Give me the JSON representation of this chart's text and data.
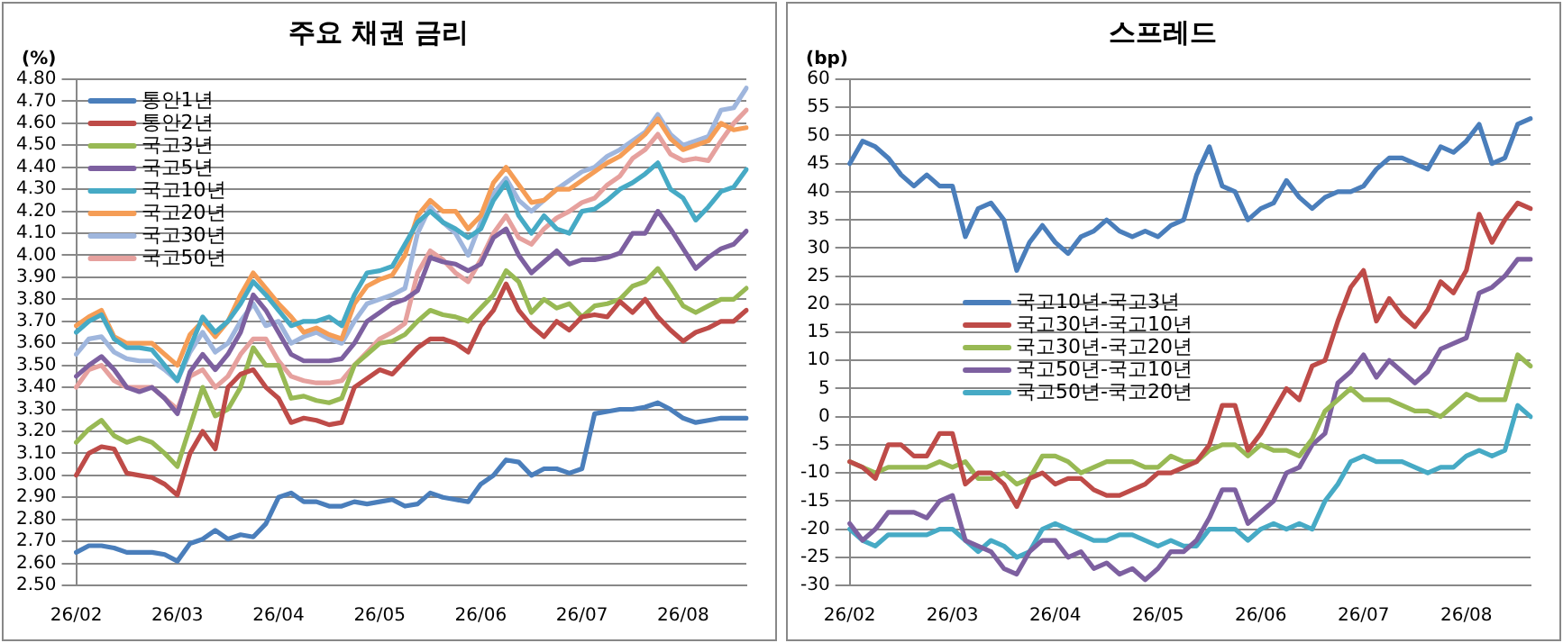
{
  "chart_data": [
    {
      "type": "line",
      "title": "주요 채권 금리",
      "ylabel": "(%)",
      "grid": "y",
      "legend": "top left",
      "marker": "none",
      "categories": [
        "26/02",
        null,
        null,
        null,
        null,
        null,
        null,
        null,
        "26/03",
        null,
        null,
        null,
        null,
        null,
        null,
        null,
        "26/04",
        null,
        null,
        null,
        null,
        null,
        null,
        null,
        "26/05",
        null,
        null,
        null,
        null,
        null,
        null,
        null,
        "26/06",
        null,
        null,
        null,
        null,
        null,
        null,
        null,
        "26/07",
        null,
        null,
        null,
        null,
        null,
        null,
        null,
        "26/08",
        null,
        null,
        null,
        null,
        null
      ],
      "ylim": [
        2.5,
        4.8
      ],
      "yticks": [
        {
          "value": 2.5,
          "label": "2.50"
        },
        {
          "value": 2.6,
          "label": "2.60"
        },
        {
          "value": 2.7,
          "label": "2.70"
        },
        {
          "value": 2.8,
          "label": "2.80"
        },
        {
          "value": 2.9,
          "label": "2.90"
        },
        {
          "value": 3.0,
          "label": "3.00"
        },
        {
          "value": 3.1,
          "label": "3.10"
        },
        {
          "value": 3.2,
          "label": "3.20"
        },
        {
          "value": 3.3,
          "label": "3.30"
        },
        {
          "value": 3.4,
          "label": "3.40"
        },
        {
          "value": 3.5,
          "label": "3.50"
        },
        {
          "value": 3.6,
          "label": "3.60"
        },
        {
          "value": 3.7,
          "label": "3.70"
        },
        {
          "value": 3.8,
          "label": "3.80"
        },
        {
          "value": 3.9,
          "label": "3.90"
        },
        {
          "value": 4.0,
          "label": "4.00"
        },
        {
          "value": 4.1,
          "label": "4.10"
        },
        {
          "value": 4.2,
          "label": "4.20"
        },
        {
          "value": 4.3,
          "label": "4.30"
        },
        {
          "value": 4.4,
          "label": "4.40"
        },
        {
          "value": 4.5,
          "label": "4.50"
        },
        {
          "value": 4.6,
          "label": "4.60"
        },
        {
          "value": 4.7,
          "label": "4.70"
        },
        {
          "value": 4.8,
          "label": "4.80"
        }
      ],
      "series": [
        {
          "name": "통안1년",
          "color": "#4a7ebb",
          "values": [
            2.65,
            2.68,
            2.68,
            2.67,
            2.65,
            2.65,
            2.65,
            2.64,
            2.61,
            2.69,
            2.71,
            2.75,
            2.71,
            2.73,
            2.72,
            2.78,
            2.9,
            2.92,
            2.88,
            2.88,
            2.86,
            2.86,
            2.88,
            2.87,
            2.88,
            2.89,
            2.86,
            2.87,
            2.92,
            2.9,
            2.89,
            2.88,
            2.96,
            3.0,
            3.07,
            3.06,
            3.0,
            3.03,
            3.03,
            3.01,
            3.03,
            3.28,
            3.29,
            3.3,
            3.3,
            3.31,
            3.33,
            3.3,
            3.26,
            3.24,
            3.25,
            3.26,
            3.26,
            3.26
          ]
        },
        {
          "name": "통안2년",
          "color": "#be4b48",
          "values": [
            3.0,
            3.1,
            3.13,
            3.12,
            3.01,
            3.0,
            2.99,
            2.96,
            2.91,
            3.1,
            3.2,
            3.12,
            3.4,
            3.46,
            3.48,
            3.4,
            3.35,
            3.24,
            3.26,
            3.25,
            3.23,
            3.24,
            3.4,
            3.44,
            3.48,
            3.46,
            3.52,
            3.58,
            3.62,
            3.62,
            3.6,
            3.56,
            3.68,
            3.75,
            3.87,
            3.75,
            3.68,
            3.63,
            3.7,
            3.66,
            3.72,
            3.73,
            3.72,
            3.79,
            3.74,
            3.8,
            3.72,
            3.66,
            3.61,
            3.65,
            3.67,
            3.7,
            3.7,
            3.75
          ]
        },
        {
          "name": "국고3년",
          "color": "#98b954",
          "values": [
            3.15,
            3.21,
            3.25,
            3.18,
            3.15,
            3.17,
            3.15,
            3.1,
            3.04,
            3.22,
            3.4,
            3.27,
            3.3,
            3.4,
            3.58,
            3.5,
            3.5,
            3.35,
            3.36,
            3.34,
            3.33,
            3.35,
            3.5,
            3.55,
            3.6,
            3.61,
            3.64,
            3.7,
            3.75,
            3.73,
            3.72,
            3.7,
            3.76,
            3.82,
            3.93,
            3.88,
            3.74,
            3.8,
            3.76,
            3.78,
            3.72,
            3.77,
            3.78,
            3.8,
            3.86,
            3.88,
            3.94,
            3.86,
            3.77,
            3.74,
            3.77,
            3.8,
            3.8,
            3.85
          ]
        },
        {
          "name": "국고5년",
          "color": "#7d60a0",
          "values": [
            3.45,
            3.5,
            3.54,
            3.48,
            3.4,
            3.38,
            3.4,
            3.35,
            3.28,
            3.47,
            3.55,
            3.48,
            3.55,
            3.65,
            3.82,
            3.75,
            3.65,
            3.55,
            3.52,
            3.52,
            3.52,
            3.53,
            3.6,
            3.7,
            3.74,
            3.78,
            3.8,
            3.84,
            3.99,
            3.97,
            3.96,
            3.93,
            3.96,
            4.08,
            4.12,
            4.0,
            3.92,
            3.97,
            4.02,
            3.96,
            3.98,
            3.98,
            3.99,
            4.01,
            4.1,
            4.1,
            4.2,
            4.12,
            4.03,
            3.94,
            3.99,
            4.03,
            4.05,
            4.11
          ]
        },
        {
          "name": "국고10년",
          "color": "#46aac5",
          "values": [
            3.65,
            3.7,
            3.73,
            3.62,
            3.58,
            3.58,
            3.57,
            3.5,
            3.43,
            3.58,
            3.72,
            3.65,
            3.7,
            3.78,
            3.88,
            3.82,
            3.75,
            3.68,
            3.7,
            3.7,
            3.72,
            3.68,
            3.82,
            3.92,
            3.93,
            3.95,
            4.05,
            4.15,
            4.2,
            4.15,
            4.12,
            4.08,
            4.12,
            4.25,
            4.33,
            4.18,
            4.1,
            4.18,
            4.12,
            4.1,
            4.2,
            4.21,
            4.25,
            4.3,
            4.33,
            4.37,
            4.42,
            4.3,
            4.26,
            4.16,
            4.22,
            4.29,
            4.31,
            4.39
          ]
        },
        {
          "name": "국고20년",
          "color": "#f59d56",
          "values": [
            3.68,
            3.72,
            3.75,
            3.63,
            3.6,
            3.6,
            3.6,
            3.55,
            3.5,
            3.64,
            3.7,
            3.63,
            3.7,
            3.82,
            3.92,
            3.85,
            3.78,
            3.72,
            3.65,
            3.67,
            3.64,
            3.62,
            3.78,
            3.86,
            3.89,
            3.91,
            4.0,
            4.18,
            4.25,
            4.2,
            4.2,
            4.12,
            4.18,
            4.33,
            4.4,
            4.32,
            4.24,
            4.25,
            4.3,
            4.3,
            4.34,
            4.38,
            4.42,
            4.45,
            4.5,
            4.55,
            4.62,
            4.53,
            4.48,
            4.5,
            4.52,
            4.6,
            4.57,
            4.58
          ]
        },
        {
          "name": "국고30년",
          "color": "#9fb6dd",
          "values": [
            3.55,
            3.62,
            3.63,
            3.56,
            3.53,
            3.52,
            3.52,
            3.48,
            3.43,
            3.56,
            3.65,
            3.56,
            3.6,
            3.7,
            3.78,
            3.68,
            3.7,
            3.6,
            3.63,
            3.65,
            3.62,
            3.6,
            3.7,
            3.78,
            3.8,
            3.82,
            3.85,
            4.1,
            4.22,
            4.15,
            4.1,
            4.0,
            4.15,
            4.28,
            4.35,
            4.25,
            4.2,
            4.25,
            4.3,
            4.34,
            4.38,
            4.4,
            4.45,
            4.48,
            4.52,
            4.56,
            4.64,
            4.55,
            4.5,
            4.52,
            4.54,
            4.66,
            4.67,
            4.76
          ]
        },
        {
          "name": "국고50년",
          "color": "#e6a19e",
          "values": [
            3.4,
            3.48,
            3.5,
            3.43,
            3.4,
            3.4,
            3.4,
            3.35,
            3.3,
            3.45,
            3.48,
            3.4,
            3.45,
            3.55,
            3.62,
            3.62,
            3.52,
            3.45,
            3.43,
            3.42,
            3.42,
            3.43,
            3.5,
            3.56,
            3.62,
            3.65,
            3.69,
            3.92,
            4.02,
            3.98,
            3.92,
            3.88,
            3.98,
            4.1,
            4.18,
            4.08,
            4.05,
            4.12,
            4.17,
            4.2,
            4.24,
            4.26,
            4.32,
            4.36,
            4.44,
            4.48,
            4.55,
            4.46,
            4.43,
            4.44,
            4.43,
            4.52,
            4.6,
            4.66
          ]
        }
      ]
    },
    {
      "type": "line",
      "title": "스프레드",
      "ylabel": "(bp)",
      "grid": "y",
      "legend": "center",
      "marker": "none",
      "categories": [
        "26/02",
        null,
        null,
        null,
        null,
        null,
        null,
        null,
        "26/03",
        null,
        null,
        null,
        null,
        null,
        null,
        null,
        "26/04",
        null,
        null,
        null,
        null,
        null,
        null,
        null,
        "26/05",
        null,
        null,
        null,
        null,
        null,
        null,
        null,
        "26/06",
        null,
        null,
        null,
        null,
        null,
        null,
        null,
        "26/07",
        null,
        null,
        null,
        null,
        null,
        null,
        null,
        "26/08",
        null,
        null,
        null,
        null,
        null
      ],
      "ylim": [
        -30,
        60
      ],
      "yticks": [
        -30,
        -25,
        -20,
        -15,
        -10,
        -5,
        0,
        5,
        10,
        15,
        20,
        25,
        30,
        35,
        40,
        45,
        50,
        55,
        60
      ],
      "series": [
        {
          "name": "국고10년-국고3년",
          "color": "#4a7ebb",
          "values": [
            45,
            49,
            48,
            46,
            43,
            41,
            43,
            41,
            41,
            32,
            37,
            38,
            35,
            26,
            31,
            34,
            31,
            29,
            32,
            33,
            35,
            33,
            32,
            33,
            32,
            34,
            35,
            43,
            48,
            41,
            40,
            35,
            37,
            38,
            42,
            39,
            37,
            39,
            40,
            40,
            41,
            44,
            46,
            46,
            45,
            44,
            48,
            47,
            49,
            52,
            45,
            46,
            52,
            53
          ]
        },
        {
          "name": "국고30년-국고10년",
          "color": "#be4b48",
          "values": [
            -8,
            -9,
            -11,
            -5,
            -5,
            -7,
            -7,
            -3,
            -3,
            -12,
            -10,
            -10,
            -12,
            -16,
            -11,
            -10,
            -12,
            -11,
            -11,
            -13,
            -14,
            -14,
            -13,
            -12,
            -10,
            -10,
            -9,
            -8,
            -5,
            2,
            2,
            -6,
            -3,
            1,
            5,
            3,
            9,
            10,
            17,
            23,
            26,
            17,
            21,
            18,
            16,
            19,
            24,
            22,
            26,
            36,
            31,
            35,
            38,
            37
          ]
        },
        {
          "name": "국고30년-국고20년",
          "color": "#98b954",
          "values": [
            -8,
            -9,
            -10,
            -9,
            -9,
            -9,
            -9,
            -8,
            -9,
            -8,
            -11,
            -11,
            -10,
            -12,
            -11,
            -7,
            -7,
            -8,
            -10,
            -9,
            -8,
            -8,
            -8,
            -9,
            -9,
            -7,
            -8,
            -8,
            -6,
            -5,
            -5,
            -7,
            -5,
            -6,
            -6,
            -7,
            -4,
            1,
            3,
            5,
            3,
            3,
            3,
            2,
            1,
            1,
            0,
            2,
            4,
            3,
            3,
            3,
            11,
            9
          ]
        },
        {
          "name": "국고50년-국고10년",
          "color": "#7d60a0",
          "values": [
            -19,
            -22,
            -20,
            -17,
            -17,
            -17,
            -18,
            -15,
            -14,
            -22,
            -23,
            -24,
            -27,
            -28,
            -24,
            -22,
            -22,
            -25,
            -24,
            -27,
            -26,
            -28,
            -27,
            -29,
            -27,
            -24,
            -24,
            -22,
            -18,
            -13,
            -13,
            -19,
            -17,
            -15,
            -10,
            -9,
            -5,
            -3,
            6,
            8,
            11,
            7,
            10,
            8,
            6,
            8,
            12,
            13,
            14,
            22,
            23,
            25,
            28,
            28
          ]
        },
        {
          "name": "국고50년-국고20년",
          "color": "#46aac5",
          "values": [
            -20,
            -22,
            -23,
            -21,
            -21,
            -21,
            -21,
            -20,
            -20,
            -22,
            -24,
            -22,
            -23,
            -25,
            -24,
            -20,
            -19,
            -20,
            -21,
            -22,
            -22,
            -21,
            -21,
            -22,
            -23,
            -22,
            -23,
            -23,
            -20,
            -20,
            -20,
            -22,
            -20,
            -19,
            -20,
            -19,
            -20,
            -15,
            -12,
            -8,
            -7,
            -8,
            -8,
            -8,
            -9,
            -10,
            -9,
            -9,
            -7,
            -6,
            -7,
            -6,
            2,
            0
          ]
        }
      ]
    }
  ]
}
